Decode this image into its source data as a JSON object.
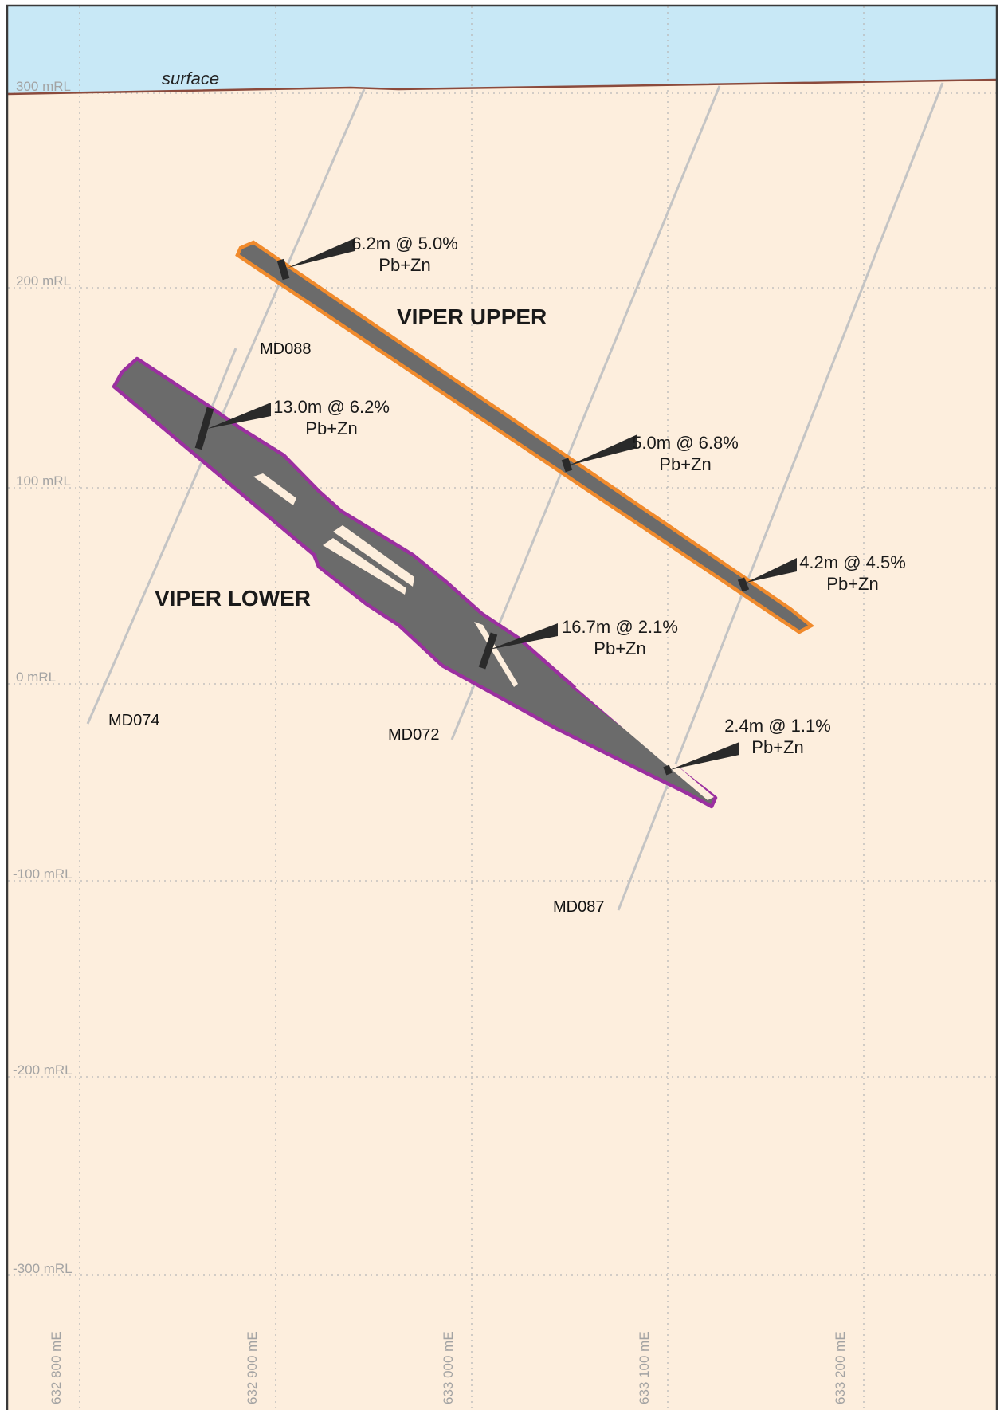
{
  "section": {
    "surface_label": "surface",
    "elevation_labels": [
      "300 mRL",
      "200 mRL",
      "100 mRL",
      "0 mRL",
      "-100 mRL",
      "-200 mRL",
      "-300 mRL"
    ],
    "easting_labels": [
      "632 800 mE",
      "632 900 mE",
      "633 000 mE",
      "633 100 mE",
      "633 200 mE"
    ],
    "zones": [
      {
        "name": "VIPER UPPER",
        "outline_color": "#f08a2c"
      },
      {
        "name": "VIPER LOWER",
        "outline_color": "#9b2fa0"
      }
    ],
    "drillholes": [
      "MD088",
      "MD074",
      "MD072",
      "MD087"
    ],
    "intercepts": [
      {
        "line1": "6.2m @ 5.0%",
        "line2": "Pb+Zn"
      },
      {
        "line1": "13.0m @ 6.2%",
        "line2": "Pb+Zn"
      },
      {
        "line1": "5.0m @ 6.8%",
        "line2": "Pb+Zn"
      },
      {
        "line1": "4.2m @ 4.5%",
        "line2": "Pb+Zn"
      },
      {
        "line1": "16.7m @ 2.1%",
        "line2": "Pb+Zn"
      },
      {
        "line1": "2.4m @ 1.1%",
        "line2": "Pb+Zn"
      }
    ],
    "colors": {
      "sky": "#c8e8f6",
      "ground": "#fdeedd",
      "surface_line": "#8b4a3c",
      "grid": "#b8b8b8",
      "drill_trace": "#c4c4c4",
      "orebody_fill": "#6b6b6b",
      "intercept": "#2a2a2a"
    }
  }
}
